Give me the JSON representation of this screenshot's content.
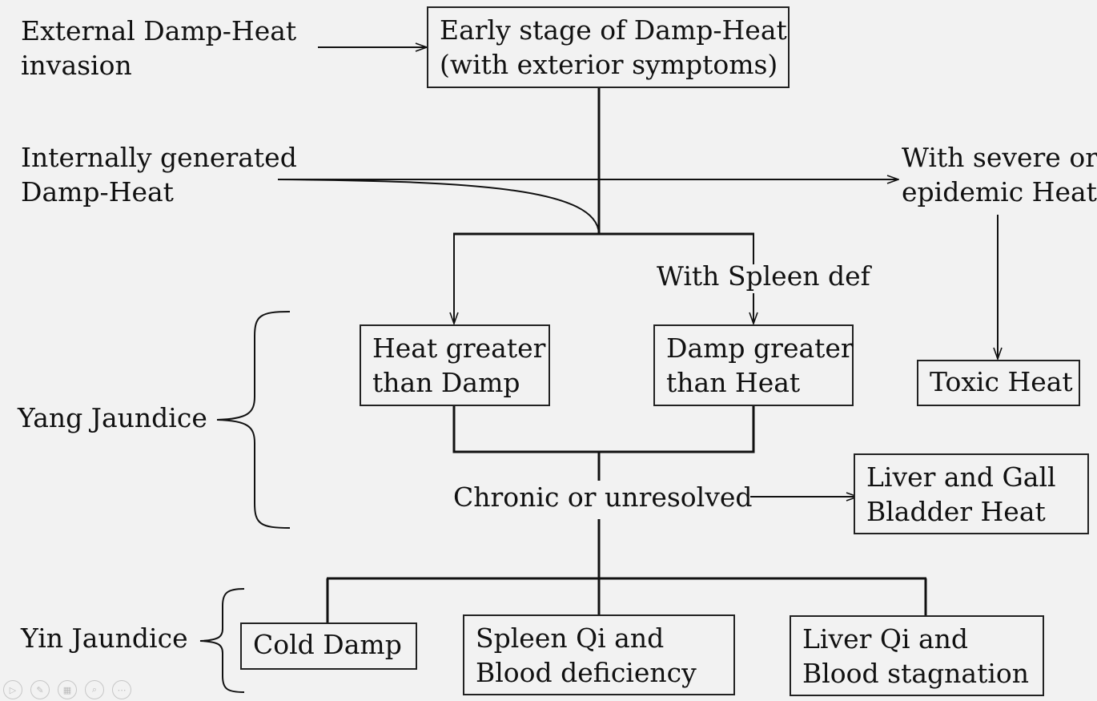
{
  "labels": {
    "external": [
      "External Damp-Heat",
      "invasion"
    ],
    "internal": [
      "Internally generated",
      "Damp-Heat"
    ],
    "severe": [
      "With severe or",
      "epidemic Heat"
    ],
    "spleen_def": "With Spleen def",
    "yang": "Yang Jaundice",
    "chronic": "Chronic or unresolved",
    "yin": "Yin Jaundice"
  },
  "boxes": {
    "early": [
      "Early stage of Damp-Heat",
      "(with exterior symptoms)"
    ],
    "heat_gt_damp": [
      "Heat greater",
      "than Damp"
    ],
    "damp_gt_heat": [
      "Damp greater",
      "than Heat"
    ],
    "toxic": "Toxic Heat",
    "liver_gb": [
      "Liver and Gall",
      "Bladder Heat"
    ],
    "cold_damp": "Cold Damp",
    "spleen_qi": [
      "Spleen Qi and",
      "Blood deficiency"
    ],
    "liver_qi": [
      "Liver Qi and",
      "Blood stagnation"
    ]
  },
  "toolbar": {
    "icons": [
      "play-icon",
      "pen-icon",
      "slides-icon",
      "zoom-icon",
      "more-icon"
    ],
    "glyphs": [
      "▷",
      "✎",
      "▦",
      "⌕",
      "⋯"
    ]
  }
}
